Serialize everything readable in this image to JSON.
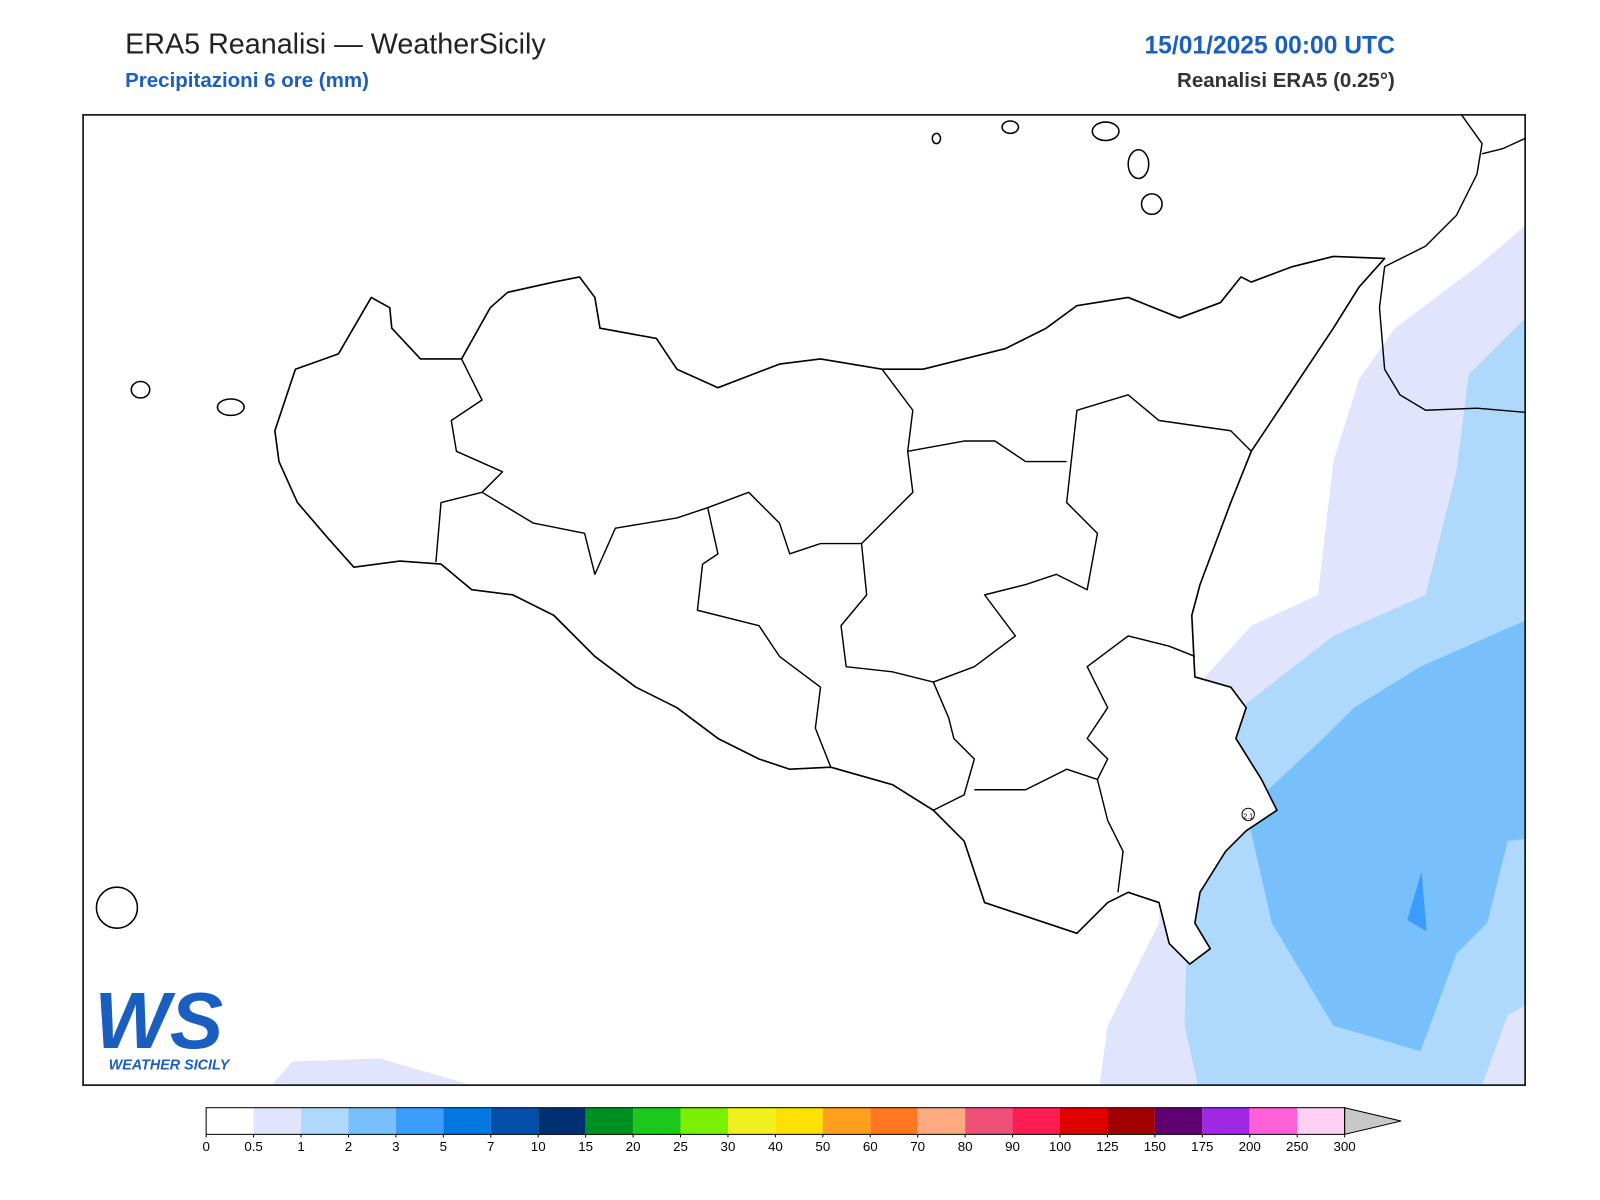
{
  "header": {
    "title": "ERA5 Reanalisi — WeatherSicily",
    "subtitle": "Precipitazioni 6 ore (mm)",
    "datetime": "15/01/2025 00:00 UTC",
    "source": "Reanalisi ERA5 (0.25°)"
  },
  "map": {
    "station_label": "2.1"
  },
  "logo": {
    "initials": "WS",
    "name": "WEATHER SICILY"
  },
  "colorbar": {
    "levels": [
      0,
      0.5,
      1,
      2,
      3,
      5,
      7,
      10,
      15,
      20,
      25,
      30,
      40,
      50,
      60,
      70,
      80,
      90,
      100,
      125,
      150,
      175,
      200,
      250,
      300
    ],
    "colors": [
      "#ffffff",
      "#e0e4fc",
      "#aed8fc",
      "#78c0fc",
      "#3c9cfc",
      "#0078e0",
      "#0050a8",
      "#003070",
      "#009020",
      "#1cc81c",
      "#78f000",
      "#f0f01c",
      "#ffe000",
      "#ffa01c",
      "#ff7820",
      "#ffaa80",
      "#f05078",
      "#ff1c50",
      "#e00000",
      "#a00000",
      "#600070",
      "#a028e0",
      "#ff60d8",
      "#ffd0f4"
    ],
    "overflow_color": "#c8c8c8"
  }
}
